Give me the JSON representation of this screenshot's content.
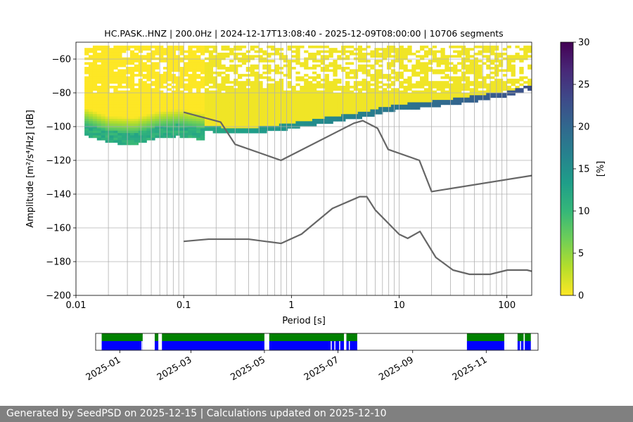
{
  "colors": {
    "noise_model": "#666666",
    "availability_top": "#008000",
    "availability_bottom": "#0000ff",
    "footer_bg": "#808080",
    "colormap": [
      "#fde725",
      "#b5de2b",
      "#6ece58",
      "#35b779",
      "#1f9e89",
      "#26828e",
      "#31688e",
      "#3e4989",
      "#482878",
      "#440154"
    ]
  },
  "chart_data": [
    {
      "type": "heatmap",
      "title": "HC.PASK..HNZ | 200.0Hz | 2024-12-17T13:08:40 - 2025-12-09T08:00:00 | 10706 segments",
      "xlabel": "Period [s]",
      "ylabel": "Amplitude [m²/s⁴/Hz] [dB]",
      "x_scale": "log",
      "xlim": [
        0.01,
        170
      ],
      "ylim": [
        -200,
        -50
      ],
      "x_ticks": [
        0.01,
        0.1,
        1,
        10,
        100
      ],
      "x_tick_labels": [
        "0.01",
        "0.1",
        "1",
        "10",
        "100"
      ],
      "y_ticks": [
        -200,
        -180,
        -160,
        -140,
        -120,
        -100,
        -80,
        -60
      ],
      "y_tick_labels": [
        "−200",
        "−180",
        "−160",
        "−140",
        "−120",
        "−100",
        "−80",
        "−60"
      ],
      "grid": true,
      "colorbar": {
        "label": "[%]",
        "range": [
          0,
          30
        ],
        "ticks": [
          0,
          5,
          10,
          15,
          20,
          25,
          30
        ],
        "tick_labels": [
          "0",
          "5",
          "10",
          "15",
          "20",
          "25",
          "30"
        ]
      },
      "density_ridge": {
        "period": [
          0.012,
          0.02,
          0.035,
          0.06,
          0.09,
          0.15,
          0.25,
          0.4,
          0.6,
          1,
          2,
          4,
          10,
          30,
          100,
          170
        ],
        "amplitude_db": [
          -97,
          -102,
          -103,
          -99,
          -98,
          -100,
          -102,
          -102,
          -101,
          -99,
          -96,
          -93,
          -88,
          -85,
          -80,
          -76
        ]
      },
      "series": [
        {
          "name": "",
          "x": [
            0.1,
            0.22,
            0.3,
            0.8,
            3.8,
            4.6,
            6.3,
            7.9,
            15.4,
            20,
            170
          ],
          "y": [
            -91.5,
            -97.3,
            -110.5,
            -120,
            -98,
            -96.5,
            -101,
            -113.5,
            -120,
            -138.5,
            -129
          ]
        },
        {
          "name": "",
          "x": [
            0.1,
            0.17,
            0.4,
            0.8,
            1.24,
            2.4,
            4.3,
            5,
            6,
            10,
            12,
            15.6,
            21.9,
            31.6,
            45,
            70,
            101,
            154,
            170
          ],
          "y": [
            -168,
            -166.7,
            -166.7,
            -169.2,
            -163.7,
            -148.5,
            -141.5,
            -141.5,
            -149.4,
            -163.8,
            -166.2,
            -162.1,
            -177.5,
            -185,
            -187.5,
            -187.5,
            -185,
            -185,
            -185.7
          ]
        }
      ]
    },
    {
      "type": "timeline",
      "x_tick_labels": [
        "2025-01",
        "2025-03",
        "2025-05",
        "2025-07",
        "2025-09",
        "2025-11"
      ],
      "x_tick_dates": [
        "2025-01-01",
        "2025-03-01",
        "2025-05-01",
        "2025-07-01",
        "2025-09-01",
        "2025-11-01"
      ],
      "range": [
        "2024-12-12",
        "2025-12-14"
      ],
      "available_periods": [
        [
          "2024-12-17",
          "2025-01-20"
        ],
        [
          "2025-01-30",
          "2025-02-02"
        ],
        [
          "2025-02-05",
          "2025-05-01"
        ],
        [
          "2025-05-05",
          "2025-07-06"
        ],
        [
          "2025-07-08",
          "2025-07-17"
        ],
        [
          "2025-10-16",
          "2025-11-16"
        ],
        [
          "2025-11-27",
          "2025-12-02"
        ],
        [
          "2025-12-03",
          "2025-12-08"
        ]
      ],
      "gaps_lower_row": [
        "2025-01-19",
        "2025-06-25",
        "2025-06-28",
        "2025-07-02",
        "2025-07-10",
        "2025-11-29",
        "2025-12-02"
      ]
    }
  ],
  "footer": {
    "text": "Generated by SeedPSD on 2025-12-15 | Calculations updated on 2025-12-10"
  }
}
